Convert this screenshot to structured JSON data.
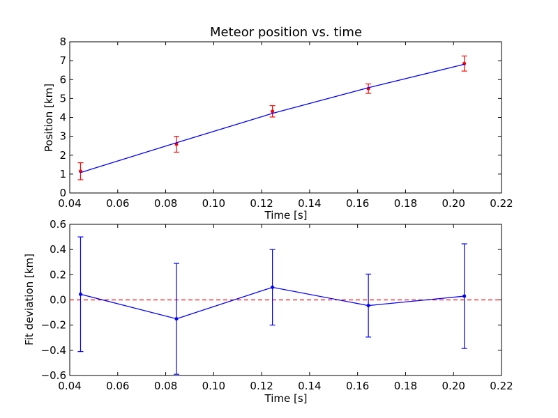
{
  "chart_data": [
    {
      "type": "scatter",
      "title": "Meteor position vs. time",
      "xlabel": "Time [s]",
      "ylabel": "Position [km]",
      "xlim": [
        0.04,
        0.22
      ],
      "ylim": [
        0,
        8
      ],
      "xticks": [
        "0.04",
        "0.06",
        "0.08",
        "0.10",
        "0.12",
        "0.14",
        "0.16",
        "0.18",
        "0.20",
        "0.22"
      ],
      "yticks": [
        "0",
        "1",
        "2",
        "3",
        "4",
        "5",
        "6",
        "7",
        "8"
      ],
      "grid": false,
      "series": [
        {
          "kind": "errorbar",
          "color": "#ff0000",
          "x": [
            0.0445,
            0.0845,
            0.1245,
            0.1645,
            0.2045
          ],
          "y": [
            1.15,
            2.58,
            4.32,
            5.52,
            6.85
          ],
          "yerr": [
            0.45,
            0.42,
            0.3,
            0.25,
            0.4
          ]
        },
        {
          "kind": "line",
          "color": "#0000ff",
          "x": [
            0.0445,
            0.0845,
            0.1245,
            0.1645,
            0.2045
          ],
          "y": [
            1.08,
            2.66,
            4.21,
            5.57,
            6.81
          ]
        }
      ]
    },
    {
      "type": "line",
      "title": "",
      "xlabel": "Time [s]",
      "ylabel": "Fit deviation [km]",
      "xlim": [
        0.04,
        0.22
      ],
      "ylim": [
        -0.6,
        0.6
      ],
      "xticks": [
        "0.04",
        "0.06",
        "0.08",
        "0.10",
        "0.12",
        "0.14",
        "0.16",
        "0.18",
        "0.20",
        "0.22"
      ],
      "yticks": [
        "−0.6",
        "−0.4",
        "−0.2",
        "0.0",
        "0.2",
        "0.4",
        "0.6"
      ],
      "yticks_values": [
        -0.6,
        -0.4,
        -0.2,
        0.0,
        0.2,
        0.4,
        0.6
      ],
      "grid": false,
      "reference_line": {
        "y": 0.0,
        "color": "#ff0000",
        "style": "dashed"
      },
      "series": [
        {
          "kind": "errorbar-line",
          "color": "#0000ff",
          "x": [
            0.0445,
            0.0845,
            0.1245,
            0.1645,
            0.2045
          ],
          "y": [
            0.045,
            -0.15,
            0.1,
            -0.045,
            0.03
          ],
          "yerr": [
            0.455,
            0.44,
            0.3,
            0.25,
            0.415
          ]
        }
      ]
    }
  ]
}
